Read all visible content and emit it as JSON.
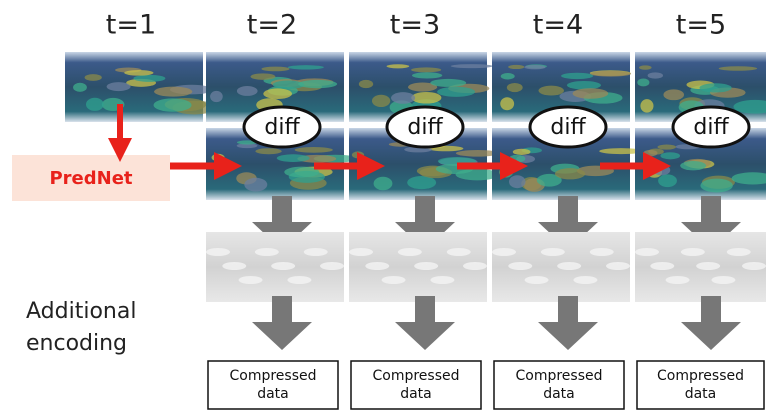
{
  "time_labels": [
    "t=1",
    "t=2",
    "t=3",
    "t=4",
    "t=5"
  ],
  "diff_labels": [
    "diff",
    "diff",
    "diff",
    "diff"
  ],
  "prednet_label": "PredNet",
  "side_label": {
    "lines": [
      "Additional",
      "encoding"
    ]
  },
  "outputs": [
    {
      "lines": [
        "Compressed",
        "data"
      ]
    },
    {
      "lines": [
        "Compressed",
        "data"
      ]
    },
    {
      "lines": [
        "Compressed",
        "data"
      ]
    },
    {
      "lines": [
        "Compressed",
        "data"
      ]
    }
  ]
}
